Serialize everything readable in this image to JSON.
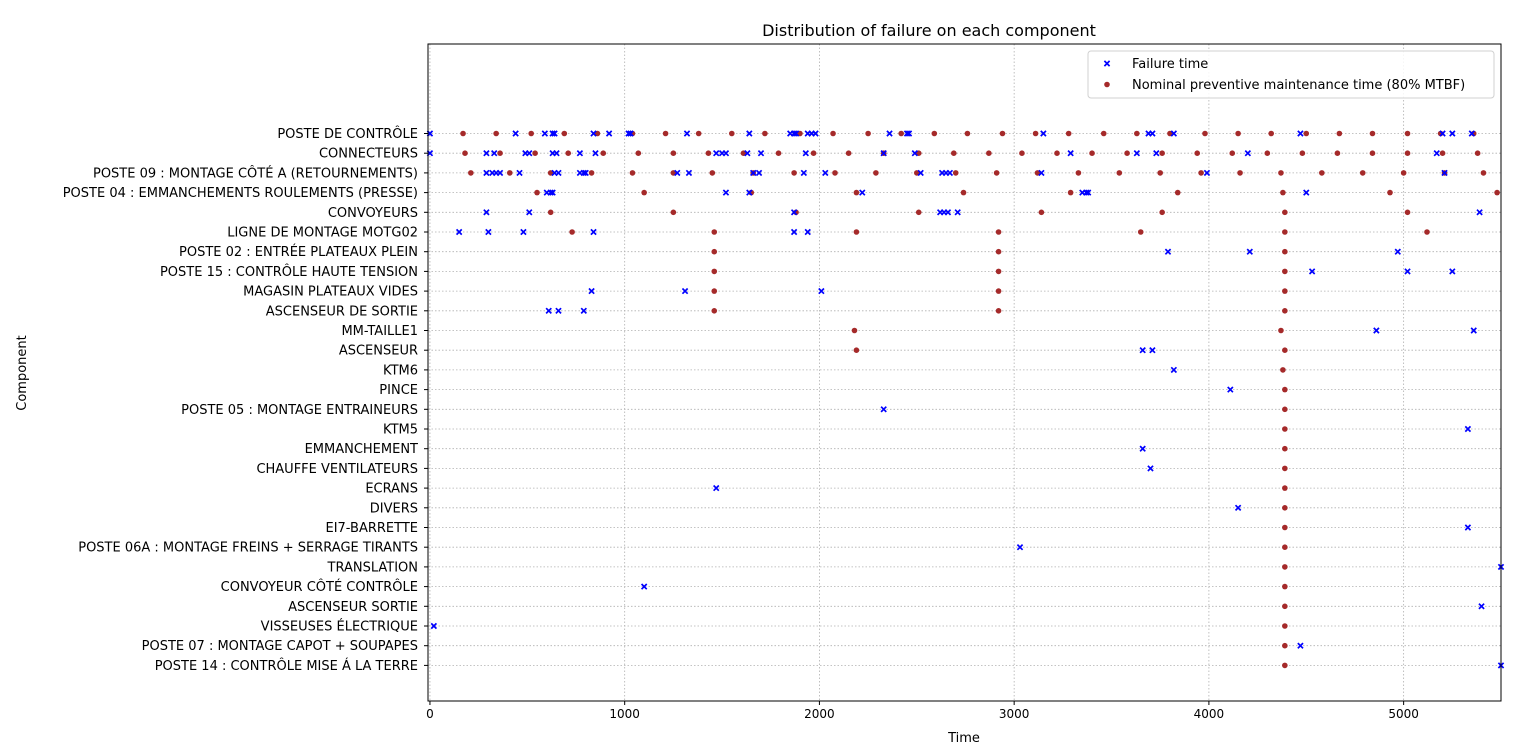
{
  "chart_data": {
    "type": "scatter",
    "title": "Distribution of failure on each component",
    "xlabel": "Time",
    "ylabel": "Component",
    "xlim": [
      -10,
      5500
    ],
    "xticks": [
      0,
      1000,
      2000,
      3000,
      4000,
      5000
    ],
    "grid": true,
    "legend_position": "top-right",
    "categories": [
      "POSTE DE CONTRÔLE",
      "CONNECTEURS",
      "POSTE 09 : MONTAGE CÔTÉ A (RETOURNEMENTS)",
      "POSTE 04  : EMMANCHEMENTS ROULEMENTS (PRESSE)",
      "CONVOYEURS",
      "LIGNE DE MONTAGE MOTG02",
      "POSTE 02 : ENTRÉE PLATEAUX PLEIN",
      "POSTE 15 : CONTRÔLE HAUTE TENSION",
      "MAGASIN PLATEAUX VIDES",
      "ASCENSEUR DE SORTIE",
      "MM-TAILLE1",
      "ASCENSEUR",
      "KTM6",
      "PINCE",
      "POSTE 05 : MONTAGE ENTRAINEURS",
      "KTM5",
      "EMMANCHEMENT",
      "CHAUFFE VENTILATEURS",
      "ECRANS",
      "DIVERS",
      "EI7-BARRETTE",
      "POSTE 06A : MONTAGE FREINS + SERRAGE TIRANTS",
      "TRANSLATION",
      "CONVOYEUR CÔTÉ CONTRÔLE",
      "ASCENSEUR SORTIE",
      "VISSEUSES ÉLECTRIQUE",
      "POSTE 07 : MONTAGE CAPOT + SOUPAPES",
      "POSTE 14 : CONTRÔLE MISE Á LA TERRE"
    ],
    "series": [
      {
        "name": "Failure time",
        "color": "#0000ff",
        "marker": "x",
        "points": [
          {
            "c": 0,
            "x": [
              0,
              440,
              590,
              630,
              640,
              840,
              920,
              1020,
              1030,
              1320,
              1640,
              1850,
              1870,
              1880,
              1940,
              1960,
              1980,
              2360,
              2450,
              2460,
              3150,
              3690,
              3710,
              3820,
              4470,
              5200,
              5250,
              5350
            ]
          },
          {
            "c": 1,
            "x": [
              0,
              290,
              330,
              490,
              510,
              630,
              650,
              770,
              850,
              1470,
              1500,
              1520,
              1630,
              1700,
              1930,
              2330,
              2490,
              3290,
              3630,
              3730,
              4200,
              5170
            ]
          },
          {
            "c": 2,
            "x": [
              290,
              320,
              340,
              360,
              460,
              640,
              660,
              770,
              790,
              800,
              1270,
              1330,
              1660,
              1690,
              1920,
              2030,
              2520,
              2630,
              2650,
              2670,
              3140,
              3990,
              5210
            ]
          },
          {
            "c": 3,
            "x": [
              600,
              620,
              630,
              1520,
              1640,
              2220,
              3350,
              3370,
              3380,
              4500
            ]
          },
          {
            "c": 4,
            "x": [
              290,
              510,
              1870,
              2620,
              2640,
              2660,
              2710,
              5390
            ]
          },
          {
            "c": 5,
            "x": [
              150,
              300,
              480,
              840,
              1870,
              1940
            ]
          },
          {
            "c": 6,
            "x": [
              3790,
              4210,
              4970
            ]
          },
          {
            "c": 7,
            "x": [
              4530,
              5020,
              5250
            ]
          },
          {
            "c": 8,
            "x": [
              830,
              1310,
              2010
            ]
          },
          {
            "c": 9,
            "x": [
              610,
              660,
              790
            ]
          },
          {
            "c": 10,
            "x": [
              4860,
              5360
            ]
          },
          {
            "c": 11,
            "x": [
              3660,
              3710
            ]
          },
          {
            "c": 12,
            "x": [
              3820
            ]
          },
          {
            "c": 13,
            "x": [
              4110
            ]
          },
          {
            "c": 14,
            "x": [
              2330
            ]
          },
          {
            "c": 15,
            "x": [
              5330
            ]
          },
          {
            "c": 16,
            "x": [
              3660
            ]
          },
          {
            "c": 17,
            "x": [
              3700
            ]
          },
          {
            "c": 18,
            "x": [
              1470
            ]
          },
          {
            "c": 19,
            "x": [
              4150
            ]
          },
          {
            "c": 20,
            "x": [
              5330
            ]
          },
          {
            "c": 21,
            "x": [
              3030
            ]
          },
          {
            "c": 22,
            "x": [
              5500
            ]
          },
          {
            "c": 23,
            "x": [
              1100
            ]
          },
          {
            "c": 24,
            "x": [
              5400
            ]
          },
          {
            "c": 25,
            "x": [
              20
            ]
          },
          {
            "c": 26,
            "x": [
              4470
            ]
          },
          {
            "c": 27,
            "x": [
              5500
            ]
          }
        ]
      },
      {
        "name": "Nominal preventive maintenance time (80% MTBF)",
        "color": "#a52a2a",
        "marker": "o",
        "points": [
          {
            "c": 0,
            "x": [
              170,
              340,
              520,
              690,
              860,
              1040,
              1210,
              1380,
              1550,
              1720,
              1900,
              2070,
              2250,
              2420,
              2590,
              2760,
              2940,
              3110,
              3280,
              3460,
              3630,
              3800,
              3980,
              4150,
              4320,
              4500,
              4670,
              4840,
              5020,
              5190,
              5360
            ]
          },
          {
            "c": 1,
            "x": [
              180,
              360,
              540,
              710,
              890,
              1070,
              1250,
              1430,
              1610,
              1790,
              1970,
              2150,
              2330,
              2510,
              2690,
              2870,
              3040,
              3220,
              3400,
              3580,
              3760,
              3940,
              4120,
              4300,
              4480,
              4660,
              4840,
              5020,
              5200,
              5380
            ]
          },
          {
            "c": 2,
            "x": [
              210,
              410,
              620,
              830,
              1040,
              1250,
              1450,
              1660,
              1870,
              2080,
              2290,
              2500,
              2700,
              2910,
              3120,
              3330,
              3540,
              3750,
              3960,
              4160,
              4370,
              4580,
              4790,
              5000,
              5210,
              5410
            ]
          },
          {
            "c": 3,
            "x": [
              550,
              1100,
              1650,
              2190,
              2740,
              3290,
              3840,
              4380,
              4930,
              5480
            ]
          },
          {
            "c": 4,
            "x": [
              620,
              1250,
              1880,
              2510,
              3140,
              3760,
              4390,
              5020
            ]
          },
          {
            "c": 5,
            "x": [
              730,
              1460,
              2190,
              2920,
              3650,
              4390,
              5120
            ]
          },
          {
            "c": 6,
            "x": [
              1460,
              2920,
              4390
            ]
          },
          {
            "c": 7,
            "x": [
              1460,
              2920,
              4390
            ]
          },
          {
            "c": 8,
            "x": [
              1460,
              2920,
              4390
            ]
          },
          {
            "c": 9,
            "x": [
              1460,
              2920,
              4390
            ]
          },
          {
            "c": 10,
            "x": [
              2180,
              4370
            ]
          },
          {
            "c": 11,
            "x": [
              2190,
              4390
            ]
          },
          {
            "c": 12,
            "x": [
              4380
            ]
          },
          {
            "c": 13,
            "x": [
              4390
            ]
          },
          {
            "c": 14,
            "x": [
              4390
            ]
          },
          {
            "c": 15,
            "x": [
              4390
            ]
          },
          {
            "c": 16,
            "x": [
              4390
            ]
          },
          {
            "c": 17,
            "x": [
              4390
            ]
          },
          {
            "c": 18,
            "x": [
              4390
            ]
          },
          {
            "c": 19,
            "x": [
              4390
            ]
          },
          {
            "c": 20,
            "x": [
              4390
            ]
          },
          {
            "c": 21,
            "x": [
              4390
            ]
          },
          {
            "c": 22,
            "x": [
              4390
            ]
          },
          {
            "c": 23,
            "x": [
              4390
            ]
          },
          {
            "c": 24,
            "x": [
              4390
            ]
          },
          {
            "c": 25,
            "x": [
              4390
            ]
          },
          {
            "c": 26,
            "x": [
              4390
            ]
          },
          {
            "c": 27,
            "x": [
              4390
            ]
          }
        ]
      }
    ]
  }
}
